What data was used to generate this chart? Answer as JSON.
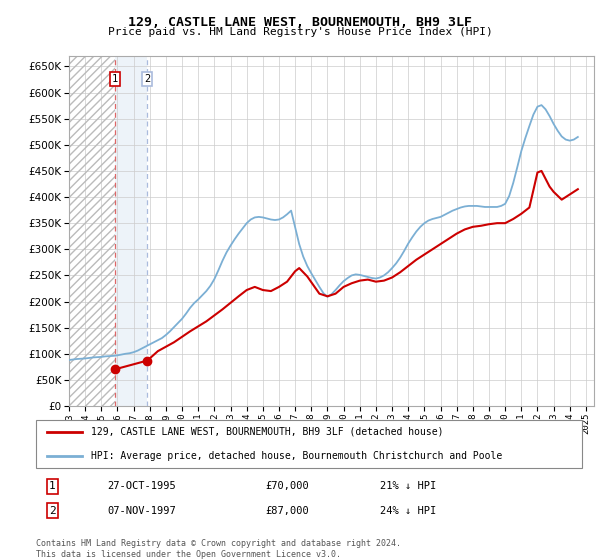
{
  "title": "129, CASTLE LANE WEST, BOURNEMOUTH, BH9 3LF",
  "subtitle": "Price paid vs. HM Land Registry's House Price Index (HPI)",
  "legend_line1": "129, CASTLE LANE WEST, BOURNEMOUTH, BH9 3LF (detached house)",
  "legend_line2": "HPI: Average price, detached house, Bournemouth Christchurch and Poole",
  "footnote": "Contains HM Land Registry data © Crown copyright and database right 2024.\nThis data is licensed under the Open Government Licence v3.0.",
  "sale1_date": "27-OCT-1995",
  "sale1_price": 70000,
  "sale1_label": "21% ↓ HPI",
  "sale2_date": "07-NOV-1997",
  "sale2_price": 87000,
  "sale2_label": "24% ↓ HPI",
  "ylim": [
    0,
    670000
  ],
  "yticks": [
    0,
    50000,
    100000,
    150000,
    200000,
    250000,
    300000,
    350000,
    400000,
    450000,
    500000,
    550000,
    600000,
    650000
  ],
  "hpi_color": "#7bafd4",
  "sale_color": "#cc0000",
  "marker_color": "#cc0000",
  "grid_color": "#cccccc",
  "sale1_x_year": 1995.82,
  "sale2_x_year": 1997.85,
  "xlim_left": 1993.0,
  "xlim_right": 2025.5,
  "hpi_data": {
    "years": [
      1993.0,
      1993.25,
      1993.5,
      1993.75,
      1994.0,
      1994.25,
      1994.5,
      1994.75,
      1995.0,
      1995.25,
      1995.5,
      1995.75,
      1996.0,
      1996.25,
      1996.5,
      1996.75,
      1997.0,
      1997.25,
      1997.5,
      1997.75,
      1998.0,
      1998.25,
      1998.5,
      1998.75,
      1999.0,
      1999.25,
      1999.5,
      1999.75,
      2000.0,
      2000.25,
      2000.5,
      2000.75,
      2001.0,
      2001.25,
      2001.5,
      2001.75,
      2002.0,
      2002.25,
      2002.5,
      2002.75,
      2003.0,
      2003.25,
      2003.5,
      2003.75,
      2004.0,
      2004.25,
      2004.5,
      2004.75,
      2005.0,
      2005.25,
      2005.5,
      2005.75,
      2006.0,
      2006.25,
      2006.5,
      2006.75,
      2007.0,
      2007.25,
      2007.5,
      2007.75,
      2008.0,
      2008.25,
      2008.5,
      2008.75,
      2009.0,
      2009.25,
      2009.5,
      2009.75,
      2010.0,
      2010.25,
      2010.5,
      2010.75,
      2011.0,
      2011.25,
      2011.5,
      2011.75,
      2012.0,
      2012.25,
      2012.5,
      2012.75,
      2013.0,
      2013.25,
      2013.5,
      2013.75,
      2014.0,
      2014.25,
      2014.5,
      2014.75,
      2015.0,
      2015.25,
      2015.5,
      2015.75,
      2016.0,
      2016.25,
      2016.5,
      2016.75,
      2017.0,
      2017.25,
      2017.5,
      2017.75,
      2018.0,
      2018.25,
      2018.5,
      2018.75,
      2019.0,
      2019.25,
      2019.5,
      2019.75,
      2020.0,
      2020.25,
      2020.5,
      2020.75,
      2021.0,
      2021.25,
      2021.5,
      2021.75,
      2022.0,
      2022.25,
      2022.5,
      2022.75,
      2023.0,
      2023.25,
      2023.5,
      2023.75,
      2024.0,
      2024.25,
      2024.5
    ],
    "values": [
      88000,
      89000,
      90000,
      90500,
      91000,
      92000,
      93000,
      93500,
      94000,
      95000,
      95500,
      96000,
      97000,
      98500,
      100000,
      101000,
      103000,
      106000,
      110000,
      114000,
      118000,
      122000,
      126000,
      130000,
      136000,
      143000,
      151000,
      159000,
      167000,
      177000,
      188000,
      197000,
      204000,
      212000,
      220000,
      230000,
      243000,
      260000,
      278000,
      294000,
      307000,
      319000,
      330000,
      340000,
      350000,
      357000,
      361000,
      362000,
      361000,
      359000,
      357000,
      356000,
      357000,
      361000,
      367000,
      374000,
      342000,
      310000,
      286000,
      268000,
      254000,
      241000,
      228000,
      216000,
      209000,
      214000,
      222000,
      231000,
      239000,
      245000,
      250000,
      252000,
      251000,
      249000,
      247000,
      245000,
      244000,
      246000,
      250000,
      256000,
      264000,
      273000,
      284000,
      297000,
      311000,
      323000,
      334000,
      343000,
      350000,
      355000,
      358000,
      360000,
      362000,
      366000,
      370000,
      374000,
      377000,
      380000,
      382000,
      383000,
      383000,
      383000,
      382000,
      381000,
      381000,
      381000,
      381000,
      383000,
      387000,
      402000,
      427000,
      457000,
      488000,
      513000,
      536000,
      558000,
      573000,
      576000,
      568000,
      555000,
      540000,
      527000,
      516000,
      510000,
      508000,
      510000,
      515000
    ]
  },
  "red_data": {
    "years": [
      1995.82,
      1997.85,
      1998.5,
      1999.5,
      2000.5,
      2001.5,
      2002.5,
      2003.5,
      2004.0,
      2004.5,
      2005.0,
      2005.5,
      2006.0,
      2006.5,
      2007.0,
      2007.25,
      2007.75,
      2008.5,
      2009.0,
      2009.5,
      2010.0,
      2010.5,
      2011.0,
      2011.5,
      2012.0,
      2012.5,
      2013.0,
      2013.5,
      2014.0,
      2014.5,
      2015.0,
      2015.5,
      2016.0,
      2016.5,
      2017.0,
      2017.5,
      2018.0,
      2018.5,
      2019.0,
      2019.5,
      2020.0,
      2020.5,
      2021.0,
      2021.5,
      2022.0,
      2022.25,
      2022.75,
      2023.0,
      2023.5,
      2024.0,
      2024.5
    ],
    "values": [
      70000,
      87000,
      105000,
      122000,
      143000,
      162000,
      185000,
      210000,
      222000,
      228000,
      222000,
      220000,
      228000,
      238000,
      258000,
      264000,
      248000,
      215000,
      210000,
      215000,
      228000,
      235000,
      240000,
      242000,
      238000,
      240000,
      246000,
      256000,
      268000,
      280000,
      290000,
      300000,
      310000,
      320000,
      330000,
      338000,
      343000,
      345000,
      348000,
      350000,
      350000,
      358000,
      368000,
      380000,
      447000,
      450000,
      420000,
      410000,
      395000,
      405000,
      415000
    ]
  }
}
